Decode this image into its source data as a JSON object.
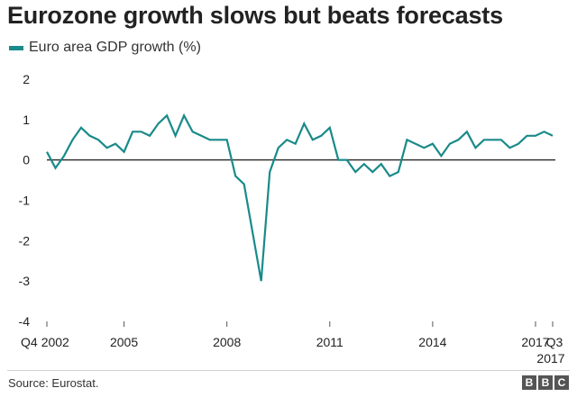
{
  "title": "Eurozone growth slows but beats forecasts",
  "source": "Source: Eurostat.",
  "brand": {
    "letters": [
      "B",
      "B",
      "C"
    ]
  },
  "colors": {
    "series": "#1a8a8a",
    "zero_line": "#333333",
    "text": "#222222",
    "brand_bg": "#555555"
  },
  "chart_data": {
    "type": "line",
    "title": "Eurozone growth slows but beats forecasts",
    "xlabel": "",
    "ylabel": "",
    "ylim": [
      -4,
      2
    ],
    "yticks": [
      2,
      1,
      0,
      -1,
      -2,
      -3,
      -4
    ],
    "grid": false,
    "legend_placement": "top-left",
    "x_tick_labels": [
      "Q4 2002",
      "2005",
      "2008",
      "2011",
      "2014",
      "2017",
      "Q3 2017"
    ],
    "x": [
      "Q4 2002",
      "Q1 2003",
      "Q2 2003",
      "Q3 2003",
      "Q4 2003",
      "Q1 2004",
      "Q2 2004",
      "Q3 2004",
      "Q4 2004",
      "Q1 2005",
      "Q2 2005",
      "Q3 2005",
      "Q4 2005",
      "Q1 2006",
      "Q2 2006",
      "Q3 2006",
      "Q4 2006",
      "Q1 2007",
      "Q2 2007",
      "Q3 2007",
      "Q4 2007",
      "Q1 2008",
      "Q2 2008",
      "Q3 2008",
      "Q4 2008",
      "Q1 2009",
      "Q2 2009",
      "Q3 2009",
      "Q4 2009",
      "Q1 2010",
      "Q2 2010",
      "Q3 2010",
      "Q4 2010",
      "Q1 2011",
      "Q2 2011",
      "Q3 2011",
      "Q4 2011",
      "Q1 2012",
      "Q2 2012",
      "Q3 2012",
      "Q4 2012",
      "Q1 2013",
      "Q2 2013",
      "Q3 2013",
      "Q4 2013",
      "Q1 2014",
      "Q2 2014",
      "Q3 2014",
      "Q4 2014",
      "Q1 2015",
      "Q2 2015",
      "Q3 2015",
      "Q4 2015",
      "Q1 2016",
      "Q2 2016",
      "Q3 2016",
      "Q4 2016",
      "Q1 2017",
      "Q2 2017",
      "Q3 2017"
    ],
    "series": [
      {
        "name": "Euro area GDP growth (%)",
        "values": [
          0.2,
          -0.2,
          0.1,
          0.5,
          0.8,
          0.6,
          0.5,
          0.3,
          0.4,
          0.2,
          0.7,
          0.7,
          0.6,
          0.9,
          1.1,
          0.6,
          1.1,
          0.7,
          0.6,
          0.5,
          0.5,
          0.5,
          -0.4,
          -0.6,
          -1.8,
          -3.0,
          -0.3,
          0.3,
          0.5,
          0.4,
          0.9,
          0.5,
          0.6,
          0.8,
          0.0,
          0.0,
          -0.3,
          -0.1,
          -0.3,
          -0.1,
          -0.4,
          -0.3,
          0.5,
          0.4,
          0.3,
          0.4,
          0.1,
          0.4,
          0.5,
          0.7,
          0.3,
          0.5,
          0.5,
          0.5,
          0.3,
          0.4,
          0.6,
          0.6,
          0.7,
          0.6
        ]
      }
    ]
  }
}
